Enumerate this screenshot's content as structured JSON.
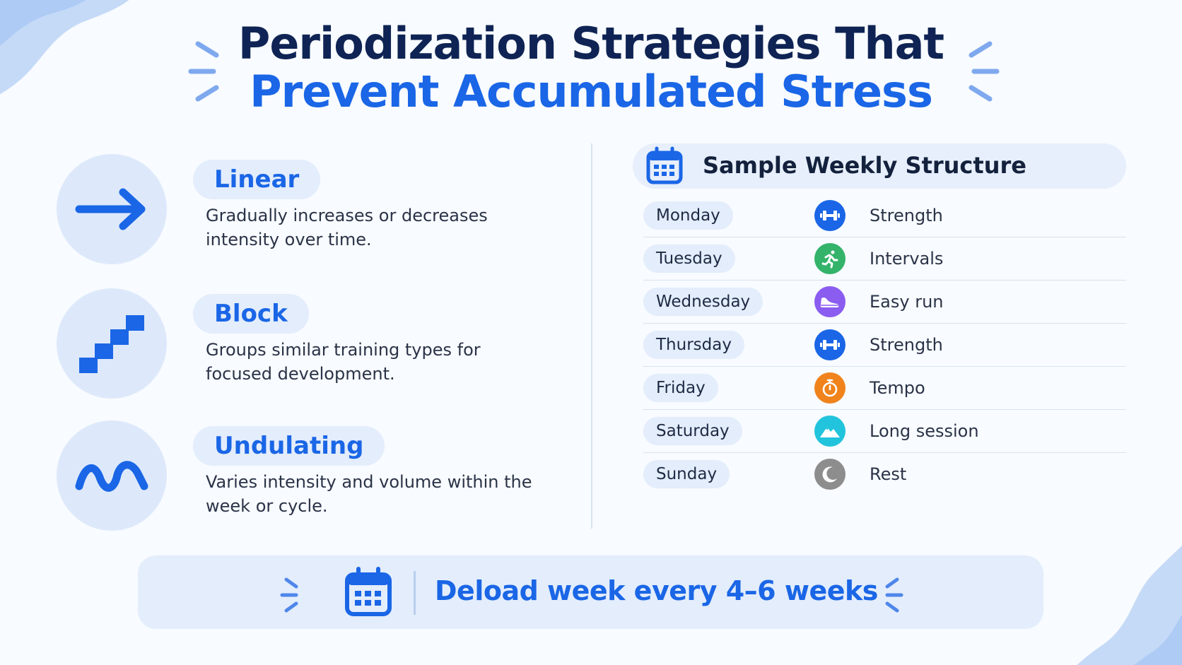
{
  "title": {
    "line1": "Periodization Strategies That",
    "line2": "Prevent Accumulated Stress"
  },
  "colors": {
    "accent": "#1a66e6",
    "navy": "#0f2454",
    "soft_blue": "#e3edfc",
    "strength": "#1a66e6",
    "intervals": "#34b36a",
    "easy_run": "#8a5cf0",
    "tempo": "#f0831c",
    "long_session": "#22c3dc",
    "rest": "#8d8d8d"
  },
  "strategies": [
    {
      "name": "Linear",
      "description": "Gradually increases or decreases intensity over time.",
      "icon": "arrow-right-icon"
    },
    {
      "name": "Block",
      "description": "Groups similar training types for focused development.",
      "icon": "stairs-icon"
    },
    {
      "name": "Undulating",
      "description": "Varies intensity and volume within the week or cycle.",
      "icon": "wave-icon"
    }
  ],
  "weekly": {
    "title": "Sample Weekly Structure",
    "icon": "calendar-icon",
    "rows": [
      {
        "day": "Monday",
        "activity": "Strength",
        "icon": "dumbbell-icon"
      },
      {
        "day": "Tuesday",
        "activity": "Intervals",
        "icon": "runner-icon"
      },
      {
        "day": "Wednesday",
        "activity": "Easy run",
        "icon": "shoe-icon"
      },
      {
        "day": "Thursday",
        "activity": "Strength",
        "icon": "dumbbell-icon"
      },
      {
        "day": "Friday",
        "activity": "Tempo",
        "icon": "stopwatch-icon"
      },
      {
        "day": "Saturday",
        "activity": "Long session",
        "icon": "mountain-icon"
      },
      {
        "day": "Sunday",
        "activity": "Rest",
        "icon": "moon-icon"
      }
    ]
  },
  "banner": {
    "text": "Deload week every 4–6 weeks",
    "icon": "calendar-icon"
  }
}
